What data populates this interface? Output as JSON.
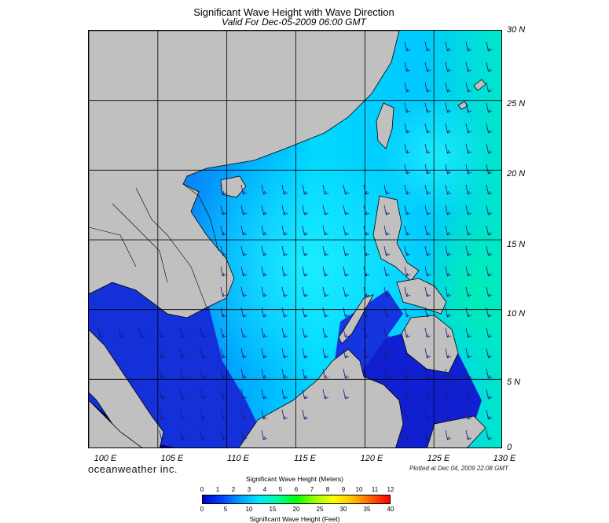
{
  "title": "Significant Wave Height with Wave Direction",
  "subtitle": "Valid For Dec-05-2009 06:00 GMT",
  "map": {
    "lon_range": [
      100,
      130
    ],
    "lat_range": [
      0,
      30
    ],
    "lat_labels": [
      "30 N",
      "25 N",
      "20 N",
      "15 N",
      "10 N",
      "5 N",
      "0"
    ],
    "lon_labels": [
      "100 E",
      "105 E",
      "110 E",
      "115 E",
      "120 E",
      "125 E",
      "130 E"
    ],
    "land_color": "#c0c0c0",
    "grid_color": "#000000",
    "wave_direction": "from northeast toward southwest",
    "regions_shown": [
      "South China Sea",
      "Philippines",
      "Taiwan",
      "Hainan",
      "Borneo",
      "Malay Peninsula",
      "Vietnam"
    ]
  },
  "brand": "oceanweather inc.",
  "plotted_text": "Plotted at Dec 04, 2009 22:08 GMT",
  "legend": {
    "title_meters": "Significant Wave Height (Meters)",
    "title_feet": "Significant Wave Height (Feet)",
    "meter_ticks": [
      "0",
      "1",
      "2",
      "3",
      "4",
      "5",
      "6",
      "7",
      "8",
      "9",
      "10",
      "11",
      "12"
    ],
    "feet_ticks": [
      "0",
      "5",
      "10",
      "15",
      "20",
      "25",
      "30",
      "35",
      "40"
    ],
    "colors": [
      "#0000cc",
      "#0040ff",
      "#00a0ff",
      "#00e8ff",
      "#00ffa0",
      "#00ff00",
      "#a0ff00",
      "#ffff00",
      "#ffc000",
      "#ff6000",
      "#ff0000"
    ]
  }
}
